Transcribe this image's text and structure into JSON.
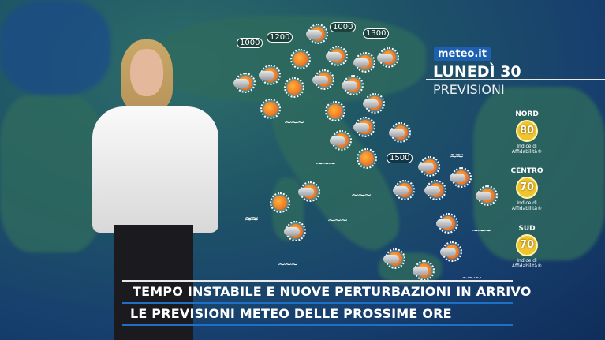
{
  "brand": {
    "logo": "meteo.it"
  },
  "header": {
    "day": "LUNEDÌ 30",
    "subtitle": "PREVISIONI"
  },
  "snow_levels": [
    "1000",
    "1200",
    "1000",
    "1300",
    "1500"
  ],
  "regions": [
    {
      "name": "NORD",
      "value": "80",
      "caption": "Indice di Affidabilità®"
    },
    {
      "name": "CENTRO",
      "value": "70",
      "caption": "Indice di Affidabilità®"
    },
    {
      "name": "SUD",
      "value": "70",
      "caption": "Indice di Affidabilità®"
    }
  ],
  "ticker": {
    "headline": "TEMPO INSTABILE E NUOVE PERTURBAZIONI IN ARRIVO",
    "subline": "LE PREVISIONI METEO DELLE PROSSIME ORE"
  },
  "colors": {
    "accent": "#1f6fc4",
    "badge": "#f0c42c",
    "logo_bg": "#1d5fb0"
  },
  "weather_icons": "sun, sun-cloud, cloud-sun, waves"
}
